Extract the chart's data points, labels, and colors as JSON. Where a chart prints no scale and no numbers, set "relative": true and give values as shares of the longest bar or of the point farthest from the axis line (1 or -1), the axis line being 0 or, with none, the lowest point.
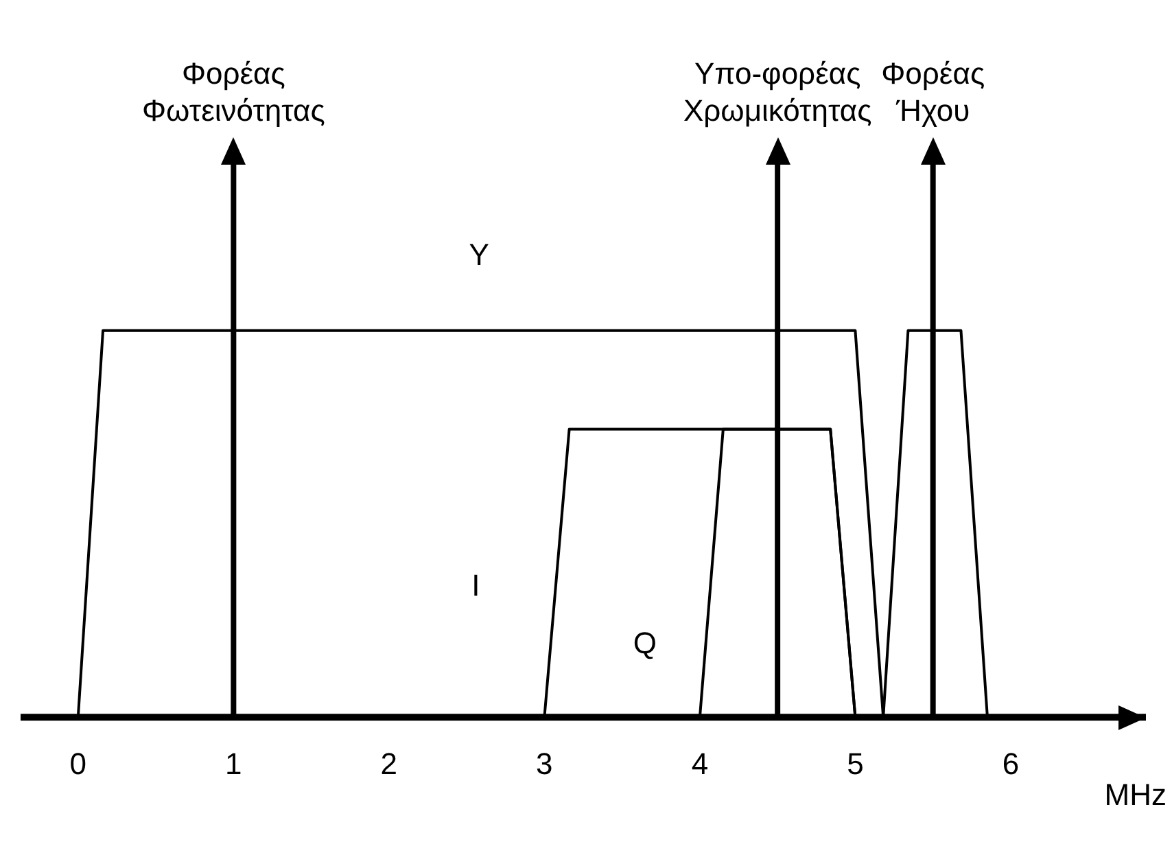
{
  "chart_data": {
    "type": "line",
    "relative": true,
    "xlabel": "MHz",
    "xlim": [
      -0.37,
      6.87
    ],
    "xticks": [
      0,
      1,
      2,
      3,
      4,
      5,
      6
    ],
    "grid": false,
    "legend": false,
    "marker": "none",
    "line_style": "solid",
    "series": [
      {
        "name": "Y",
        "color": "#000000",
        "x": [
          0,
          0.16,
          5.0,
          5.18
        ],
        "values": [
          0,
          1,
          1,
          0
        ]
      },
      {
        "name": "I",
        "color": "#000000",
        "x": [
          3.0,
          3.16,
          4.84,
          5.0
        ],
        "values": [
          0,
          0.745,
          0.745,
          0
        ]
      },
      {
        "name": "Q",
        "color": "#000000",
        "x": [
          4.0,
          4.15,
          4.84,
          5.0
        ],
        "values": [
          0,
          0.745,
          0.745,
          0
        ]
      },
      {
        "color": "#000000",
        "x": [
          5.18,
          5.34,
          5.68,
          5.85
        ],
        "values": [
          0,
          1,
          1,
          0
        ]
      }
    ],
    "ref_lines": [
      {
        "axis": "x",
        "value": 1,
        "label": "Φορέας\nΦωτεινότητας",
        "color": "#000000"
      },
      {
        "axis": "x",
        "value": 4.5,
        "label": "Υπο-φορέας\nΧρωμικότητας",
        "color": "#000000"
      },
      {
        "axis": "x",
        "value": 5.5,
        "label": "Φορέας\nΉχου",
        "color": "#000000"
      }
    ]
  }
}
